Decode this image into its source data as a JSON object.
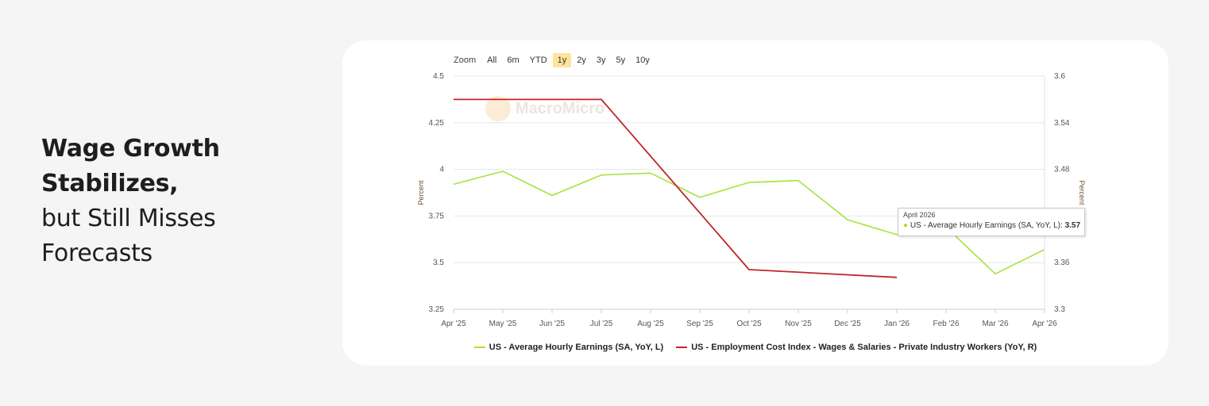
{
  "headline": {
    "line1": "Wage Growth",
    "line2": "Stabilizes,",
    "line3": "but Still Misses",
    "line4": "Forecasts"
  },
  "zoom": {
    "label": "Zoom",
    "buttons": [
      "All",
      "6m",
      "YTD",
      "1y",
      "2y",
      "3y",
      "5y",
      "10y"
    ],
    "active": "1y"
  },
  "watermark": "MacroMicro",
  "tooltip": {
    "title": "April 2026",
    "series": "US - Average Hourly Earnings (SA, YoY, L): ",
    "value": "3.57"
  },
  "colors": {
    "series1": "#a4e43a",
    "series2": "#c0262b",
    "grid": "#e6e6e6"
  },
  "chart_data": {
    "type": "line",
    "categories": [
      "Apr '25",
      "May '25",
      "Jun '25",
      "Jul '25",
      "Aug '25",
      "Sep '25",
      "Oct '25",
      "Nov '25",
      "Dec '25",
      "Jan '26",
      "Feb '26",
      "Mar '26",
      "Apr '26"
    ],
    "y_left": {
      "label": "Percent",
      "ticks": [
        "3.25",
        "3.5",
        "3.75",
        "4",
        "4.25",
        "4.5"
      ],
      "range": [
        3.25,
        4.5
      ]
    },
    "y_right": {
      "label": "Percent",
      "ticks": [
        "3.3",
        "3.36",
        "3.42",
        "3.48",
        "3.54",
        "3.6"
      ],
      "range": [
        3.3,
        3.6
      ]
    },
    "series": [
      {
        "name": "US - Average Hourly Earnings (SA, YoY, L)",
        "axis": "left",
        "color": "#a4e43a",
        "values": [
          3.92,
          3.99,
          3.86,
          3.97,
          3.98,
          3.85,
          3.93,
          3.94,
          3.73,
          3.65,
          3.69,
          3.44,
          3.57
        ]
      },
      {
        "name": "US - Employment Cost Index - Wages & Salaries - Private Industry Workers (YoY, R)",
        "axis": "right",
        "color": "#c0262b",
        "values": [
          3.57,
          null,
          null,
          3.57,
          null,
          null,
          3.351,
          null,
          null,
          3.341,
          null,
          null,
          null
        ]
      }
    ],
    "grid": true,
    "legend_position": "bottom"
  }
}
